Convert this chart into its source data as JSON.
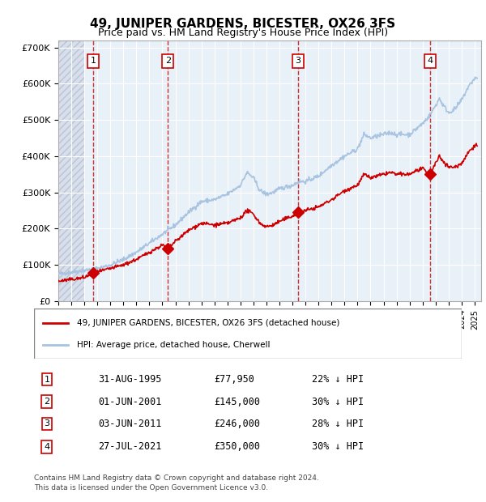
{
  "title": "49, JUNIPER GARDENS, BICESTER, OX26 3FS",
  "subtitle": "Price paid vs. HM Land Registry's House Price Index (HPI)",
  "legend_line1": "49, JUNIPER GARDENS, BICESTER, OX26 3FS (detached house)",
  "legend_line2": "HPI: Average price, detached house, Cherwell",
  "footer1": "Contains HM Land Registry data © Crown copyright and database right 2024.",
  "footer2": "This data is licensed under the Open Government Licence v3.0.",
  "hpi_color": "#a8c4e0",
  "price_color": "#cc0000",
  "background_plot": "#e8f0f8",
  "hatch_color": "#c0c8d8",
  "grid_color": "#ffffff",
  "transactions": [
    {
      "label": "1",
      "date": "1995-08-31",
      "price": 77950,
      "x_year": 1995.67
    },
    {
      "label": "2",
      "date": "2001-06-01",
      "price": 145000,
      "x_year": 2001.42
    },
    {
      "label": "3",
      "date": "2011-06-03",
      "price": 246000,
      "x_year": 2011.42
    },
    {
      "label": "4",
      "date": "2021-07-27",
      "price": 350000,
      "x_year": 2021.57
    }
  ],
  "table_rows": [
    {
      "num": "1",
      "date": "31-AUG-1995",
      "price": "£77,950",
      "pct": "22% ↓ HPI"
    },
    {
      "num": "2",
      "date": "01-JUN-2001",
      "price": "£145,000",
      "pct": "30% ↓ HPI"
    },
    {
      "num": "3",
      "date": "03-JUN-2011",
      "price": "£246,000",
      "pct": "28% ↓ HPI"
    },
    {
      "num": "4",
      "date": "27-JUL-2021",
      "price": "£350,000",
      "pct": "30% ↓ HPI"
    }
  ],
  "ylim": [
    0,
    720000
  ],
  "xlim_start": 1993.0,
  "xlim_end": 2025.5
}
